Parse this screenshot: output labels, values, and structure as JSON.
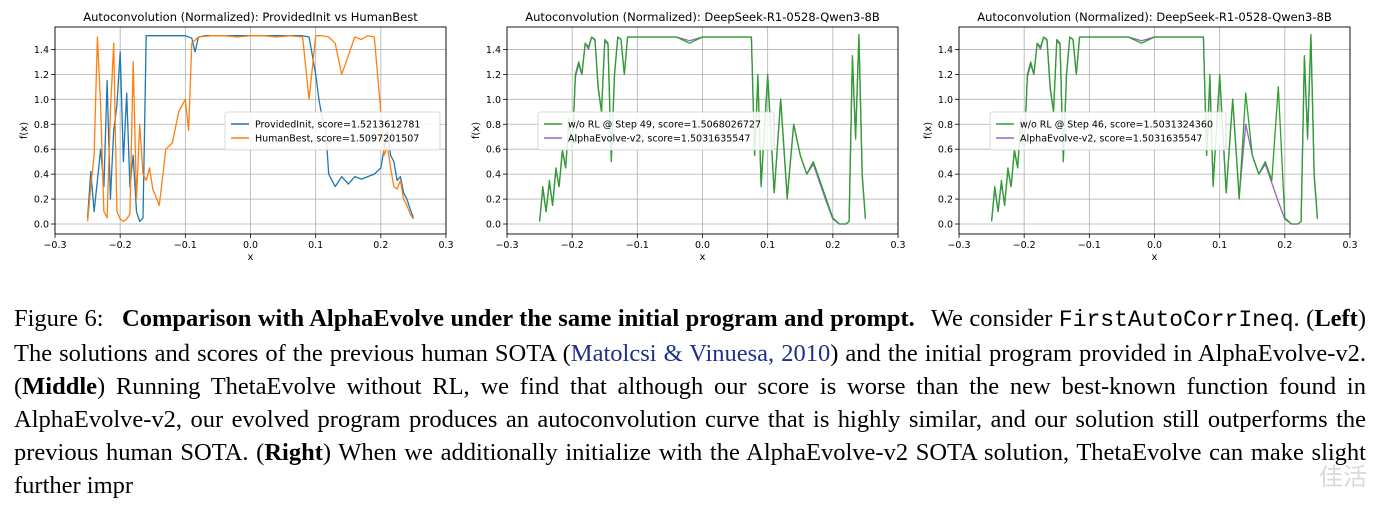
{
  "chart_data": [
    {
      "type": "line",
      "title": "Autoconvolution (Normalized): ProvidedInit vs HumanBest",
      "xlabel": "x",
      "ylabel": "f(x)",
      "xlim": [
        -0.3,
        0.3
      ],
      "ylim": [
        -0.08,
        1.58
      ],
      "xticks": [
        "−0.3",
        "−0.2",
        "−0.1",
        "0.0",
        "0.1",
        "0.2",
        "0.3"
      ],
      "yticks": [
        "0.0",
        "0.2",
        "0.4",
        "0.6",
        "0.8",
        "1.0",
        "1.2",
        "1.4"
      ],
      "grid": true,
      "legend_position": "center-right",
      "series": [
        {
          "name": "ProvidedInit, score=1.5213612781",
          "color": "#1f77b4",
          "x": [
            -0.25,
            -0.245,
            -0.24,
            -0.235,
            -0.23,
            -0.225,
            -0.22,
            -0.215,
            -0.21,
            -0.205,
            -0.2,
            -0.195,
            -0.19,
            -0.185,
            -0.18,
            -0.175,
            -0.17,
            -0.165,
            -0.16,
            -0.15,
            -0.12,
            -0.1,
            -0.09,
            -0.085,
            -0.08,
            -0.07,
            -0.05,
            -0.03,
            0.0,
            0.03,
            0.06,
            0.08,
            0.09,
            0.1,
            0.105,
            0.11,
            0.115,
            0.12,
            0.13,
            0.14,
            0.15,
            0.16,
            0.17,
            0.18,
            0.19,
            0.2,
            0.205,
            0.21,
            0.215,
            0.22,
            0.225,
            0.23,
            0.235,
            0.24,
            0.245,
            0.25
          ],
          "y": [
            0.05,
            0.42,
            0.1,
            0.35,
            0.6,
            0.3,
            1.15,
            0.2,
            0.75,
            0.95,
            1.38,
            0.5,
            1.05,
            0.3,
            0.55,
            0.1,
            0.02,
            0.05,
            1.51,
            1.51,
            1.51,
            1.51,
            1.49,
            1.38,
            1.5,
            1.51,
            1.51,
            1.51,
            1.51,
            1.51,
            1.51,
            1.51,
            1.5,
            1.2,
            1.0,
            0.85,
            0.8,
            0.4,
            0.3,
            0.38,
            0.32,
            0.38,
            0.36,
            0.38,
            0.4,
            0.45,
            0.6,
            0.75,
            0.55,
            0.5,
            0.35,
            0.38,
            0.25,
            0.2,
            0.12,
            0.05
          ]
        },
        {
          "name": "HumanBest, score=1.5097201507",
          "color": "#ff7f0e",
          "x": [
            -0.25,
            -0.245,
            -0.24,
            -0.235,
            -0.23,
            -0.225,
            -0.22,
            -0.215,
            -0.21,
            -0.205,
            -0.2,
            -0.195,
            -0.19,
            -0.185,
            -0.18,
            -0.175,
            -0.17,
            -0.165,
            -0.16,
            -0.155,
            -0.15,
            -0.14,
            -0.13,
            -0.12,
            -0.11,
            -0.1,
            -0.095,
            -0.09,
            -0.08,
            -0.06,
            -0.04,
            -0.02,
            0.0,
            0.02,
            0.04,
            0.06,
            0.08,
            0.09,
            0.1,
            0.11,
            0.12,
            0.13,
            0.14,
            0.15,
            0.16,
            0.17,
            0.18,
            0.19,
            0.2,
            0.205,
            0.21,
            0.215,
            0.22,
            0.225,
            0.23,
            0.235,
            0.24,
            0.245,
            0.25
          ],
          "y": [
            0.02,
            0.3,
            0.55,
            1.5,
            0.95,
            0.1,
            0.05,
            0.9,
            1.45,
            0.1,
            0.04,
            0.02,
            0.04,
            0.08,
            1.3,
            0.2,
            0.8,
            0.4,
            0.35,
            0.45,
            0.28,
            0.15,
            0.6,
            0.65,
            0.9,
            1.0,
            0.75,
            1.45,
            1.5,
            1.51,
            1.51,
            1.5,
            1.51,
            1.51,
            1.5,
            1.51,
            1.5,
            1.0,
            1.51,
            1.51,
            1.5,
            1.45,
            1.2,
            1.35,
            1.5,
            1.48,
            1.51,
            1.5,
            0.9,
            0.55,
            0.62,
            0.45,
            0.3,
            0.28,
            0.35,
            0.2,
            0.15,
            0.08,
            0.04
          ]
        }
      ]
    },
    {
      "type": "line",
      "title": "Autoconvolution (Normalized): DeepSeek-R1-0528-Qwen3-8B",
      "xlabel": "x",
      "ylabel": "f(x)",
      "xlim": [
        -0.3,
        0.3
      ],
      "ylim": [
        -0.08,
        1.58
      ],
      "xticks": [
        "−0.3",
        "−0.2",
        "−0.1",
        "0.0",
        "0.1",
        "0.2",
        "0.3"
      ],
      "yticks": [
        "0.0",
        "0.2",
        "0.4",
        "0.6",
        "0.8",
        "1.0",
        "1.2",
        "1.4"
      ],
      "grid": true,
      "legend_position": "center-left",
      "series": [
        {
          "name": "w/o RL @ Step 49, score=1.5068026727",
          "color": "#2ca02c",
          "x": [
            -0.25,
            -0.245,
            -0.24,
            -0.235,
            -0.23,
            -0.225,
            -0.22,
            -0.215,
            -0.21,
            -0.205,
            -0.2,
            -0.195,
            -0.19,
            -0.185,
            -0.18,
            -0.175,
            -0.17,
            -0.165,
            -0.16,
            -0.155,
            -0.15,
            -0.145,
            -0.14,
            -0.135,
            -0.13,
            -0.125,
            -0.12,
            -0.115,
            -0.11,
            -0.1,
            -0.08,
            -0.06,
            -0.04,
            -0.02,
            0.0,
            0.02,
            0.04,
            0.06,
            0.07,
            0.075,
            0.08,
            0.085,
            0.09,
            0.1,
            0.11,
            0.12,
            0.13,
            0.14,
            0.15,
            0.16,
            0.17,
            0.18,
            0.19,
            0.2,
            0.21,
            0.22,
            0.225,
            0.23,
            0.235,
            0.24,
            0.245,
            0.25
          ],
          "y": [
            0.02,
            0.3,
            0.1,
            0.35,
            0.15,
            0.45,
            0.3,
            0.6,
            0.45,
            0.85,
            0.6,
            1.2,
            1.3,
            1.2,
            1.45,
            1.42,
            1.5,
            1.48,
            1.1,
            0.9,
            1.48,
            1.45,
            0.5,
            1.2,
            1.5,
            1.48,
            1.2,
            1.5,
            1.5,
            1.5,
            1.5,
            1.5,
            1.5,
            1.45,
            1.5,
            1.5,
            1.5,
            1.5,
            1.5,
            1.5,
            0.55,
            1.2,
            0.3,
            1.2,
            0.25,
            1.0,
            0.2,
            0.8,
            0.55,
            0.4,
            0.5,
            0.35,
            0.2,
            0.05,
            0.0,
            0.0,
            0.02,
            1.35,
            0.7,
            1.52,
            0.4,
            0.05
          ]
        },
        {
          "name": "AlphaEvolve-v2, score=1.5031635547",
          "color": "#9467bd",
          "x": [
            -0.25,
            -0.245,
            -0.24,
            -0.235,
            -0.23,
            -0.225,
            -0.22,
            -0.215,
            -0.21,
            -0.205,
            -0.2,
            -0.195,
            -0.19,
            -0.185,
            -0.18,
            -0.175,
            -0.17,
            -0.165,
            -0.16,
            -0.155,
            -0.15,
            -0.145,
            -0.14,
            -0.135,
            -0.13,
            -0.125,
            -0.12,
            -0.115,
            -0.11,
            -0.1,
            -0.08,
            -0.06,
            -0.04,
            -0.02,
            0.0,
            0.02,
            0.04,
            0.06,
            0.07,
            0.075,
            0.08,
            0.085,
            0.09,
            0.1,
            0.11,
            0.12,
            0.13,
            0.14,
            0.15,
            0.16,
            0.17,
            0.18,
            0.19,
            0.2,
            0.21,
            0.22,
            0.225,
            0.23,
            0.235,
            0.24,
            0.245,
            0.25
          ],
          "y": [
            0.02,
            0.28,
            0.1,
            0.33,
            0.15,
            0.43,
            0.3,
            0.58,
            0.45,
            0.83,
            0.6,
            1.18,
            1.28,
            1.2,
            1.45,
            1.4,
            1.5,
            1.47,
            1.08,
            0.9,
            1.47,
            1.44,
            0.52,
            1.2,
            1.5,
            1.48,
            1.2,
            1.5,
            1.5,
            1.5,
            1.5,
            1.5,
            1.5,
            1.47,
            1.5,
            1.5,
            1.5,
            1.5,
            1.5,
            1.5,
            0.55,
            1.15,
            0.32,
            1.18,
            0.25,
            1.0,
            0.22,
            0.8,
            0.55,
            0.4,
            0.48,
            0.33,
            0.18,
            0.04,
            0.0,
            0.0,
            0.02,
            1.33,
            0.68,
            1.5,
            0.38,
            0.04
          ]
        }
      ]
    },
    {
      "type": "line",
      "title": "Autoconvolution (Normalized): DeepSeek-R1-0528-Qwen3-8B",
      "xlabel": "x",
      "ylabel": "f(x)",
      "xlim": [
        -0.3,
        0.3
      ],
      "ylim": [
        -0.08,
        1.58
      ],
      "xticks": [
        "−0.3",
        "−0.2",
        "−0.1",
        "0.0",
        "0.1",
        "0.2",
        "0.3"
      ],
      "yticks": [
        "0.0",
        "0.2",
        "0.4",
        "0.6",
        "0.8",
        "1.0",
        "1.2",
        "1.4"
      ],
      "grid": true,
      "legend_position": "center-left",
      "series": [
        {
          "name": "w/o RL @ Step 46, score=1.5031324360",
          "color": "#2ca02c",
          "x": [
            -0.25,
            -0.245,
            -0.24,
            -0.235,
            -0.23,
            -0.225,
            -0.22,
            -0.215,
            -0.21,
            -0.205,
            -0.2,
            -0.195,
            -0.19,
            -0.185,
            -0.18,
            -0.175,
            -0.17,
            -0.165,
            -0.16,
            -0.155,
            -0.15,
            -0.145,
            -0.14,
            -0.135,
            -0.13,
            -0.125,
            -0.12,
            -0.115,
            -0.11,
            -0.1,
            -0.08,
            -0.06,
            -0.04,
            -0.02,
            0.0,
            0.02,
            0.04,
            0.06,
            0.07,
            0.075,
            0.08,
            0.085,
            0.09,
            0.1,
            0.11,
            0.12,
            0.13,
            0.14,
            0.15,
            0.16,
            0.17,
            0.18,
            0.19,
            0.2,
            0.21,
            0.22,
            0.225,
            0.23,
            0.235,
            0.24,
            0.245,
            0.25
          ],
          "y": [
            0.02,
            0.3,
            0.1,
            0.35,
            0.15,
            0.45,
            0.3,
            0.6,
            0.45,
            0.85,
            0.6,
            1.2,
            1.3,
            1.2,
            1.45,
            1.42,
            1.5,
            1.48,
            1.1,
            0.9,
            1.48,
            1.45,
            0.5,
            1.2,
            1.5,
            1.48,
            1.2,
            1.5,
            1.5,
            1.5,
            1.5,
            1.5,
            1.5,
            1.45,
            1.5,
            1.5,
            1.5,
            1.5,
            1.5,
            1.5,
            0.55,
            1.2,
            0.3,
            1.2,
            0.25,
            1.0,
            0.2,
            1.05,
            0.55,
            0.4,
            0.5,
            0.35,
            1.1,
            0.05,
            0.0,
            0.0,
            0.02,
            1.35,
            0.7,
            1.52,
            0.4,
            0.05
          ]
        },
        {
          "name": "AlphaEvolve-v2, score=1.5031635547",
          "color": "#9467bd",
          "x": [
            -0.25,
            -0.245,
            -0.24,
            -0.235,
            -0.23,
            -0.225,
            -0.22,
            -0.215,
            -0.21,
            -0.205,
            -0.2,
            -0.195,
            -0.19,
            -0.185,
            -0.18,
            -0.175,
            -0.17,
            -0.165,
            -0.16,
            -0.155,
            -0.15,
            -0.145,
            -0.14,
            -0.135,
            -0.13,
            -0.125,
            -0.12,
            -0.115,
            -0.11,
            -0.1,
            -0.08,
            -0.06,
            -0.04,
            -0.02,
            0.0,
            0.02,
            0.04,
            0.06,
            0.07,
            0.075,
            0.08,
            0.085,
            0.09,
            0.1,
            0.11,
            0.12,
            0.13,
            0.14,
            0.15,
            0.16,
            0.17,
            0.18,
            0.19,
            0.2,
            0.21,
            0.22,
            0.225,
            0.23,
            0.235,
            0.24,
            0.245,
            0.25
          ],
          "y": [
            0.02,
            0.28,
            0.1,
            0.33,
            0.15,
            0.43,
            0.3,
            0.58,
            0.45,
            0.83,
            0.6,
            1.18,
            1.28,
            1.2,
            1.45,
            1.4,
            1.5,
            1.47,
            1.08,
            0.9,
            1.47,
            1.44,
            0.52,
            1.2,
            1.5,
            1.48,
            1.2,
            1.5,
            1.5,
            1.5,
            1.5,
            1.5,
            1.5,
            1.47,
            1.5,
            1.5,
            1.5,
            1.5,
            1.5,
            1.5,
            0.55,
            1.15,
            0.32,
            1.18,
            0.25,
            1.0,
            0.22,
            0.8,
            0.55,
            0.4,
            0.48,
            0.33,
            0.18,
            0.04,
            0.0,
            0.0,
            0.02,
            1.33,
            0.68,
            1.5,
            0.38,
            0.04
          ]
        }
      ]
    }
  ],
  "caption": {
    "label": "Figure 6:",
    "title": "Comparison with AlphaEvolve under the same initial program and prompt.",
    "t1": "We consider",
    "code": "FirstAutoCorrIneq",
    "t2": ". (",
    "left": "Left",
    "t3": ") The solutions and scores of the previous human SOTA (",
    "cite": "Matolcsi & Vinuesa, 2010",
    "t4": ") and the initial program provided in AlphaEvolve-v2. (",
    "middle": "Middle",
    "t5": ") Running ThetaEvolve without RL, we find that although our score is worse than the new best-known function found in AlphaEvolve-v2, our evolved program produces an autoconvolution curve that is highly similar, and our solution still outperforms the previous human SOTA. (",
    "right": "Right",
    "t6": ") When we additionally initialize with the AlphaEvolve-v2 SOTA solution, ThetaEvolve can make slight further impr"
  },
  "watermark": "佳活"
}
